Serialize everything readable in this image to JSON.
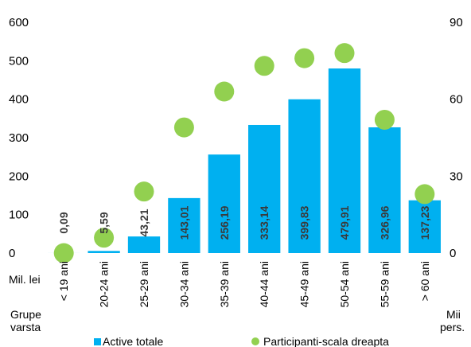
{
  "chart_data": {
    "type": "bar",
    "categories": [
      "< 19 ani",
      "20-24 ani",
      "25-29 ani",
      "30-34 ani",
      "35-39 ani",
      "40-44 ani",
      "45-49 ani",
      "50-54 ani",
      "55-59 ani",
      "> 60 ani"
    ],
    "series": [
      {
        "name": "Active totale",
        "type": "bar",
        "axis": "left",
        "color": "#00b0f0",
        "values": [
          0.09,
          5.59,
          43.21,
          143.01,
          256.19,
          333.14,
          399.83,
          479.91,
          326.96,
          137.23
        ],
        "data_labels": [
          "0,09",
          "5,59",
          "43,21",
          "143,01",
          "256,19",
          "333,14",
          "399,83",
          "479,91",
          "326,96",
          "137,23"
        ]
      },
      {
        "name": "Participanti-scala dreapta",
        "type": "scatter",
        "axis": "right",
        "color": "#92d050",
        "values": [
          0,
          6,
          24,
          49,
          63,
          73,
          76,
          78,
          52,
          23
        ]
      }
    ],
    "y_left": {
      "range": [
        0,
        600
      ],
      "ticks": [
        "0",
        "100",
        "200",
        "300",
        "400",
        "500",
        "600"
      ],
      "unit_label": "Mil. lei"
    },
    "y_right": {
      "range": [
        0,
        90
      ],
      "ticks": [
        "0",
        "30",
        "60",
        "90"
      ],
      "unit_label_lines": [
        "Mii",
        "pers."
      ]
    },
    "x_axis_label_lines": [
      "Grupe",
      "varsta"
    ],
    "legend": {
      "position": "bottom",
      "entries": [
        "Active totale",
        "Participanti-scala dreapta"
      ]
    },
    "grid": false
  }
}
